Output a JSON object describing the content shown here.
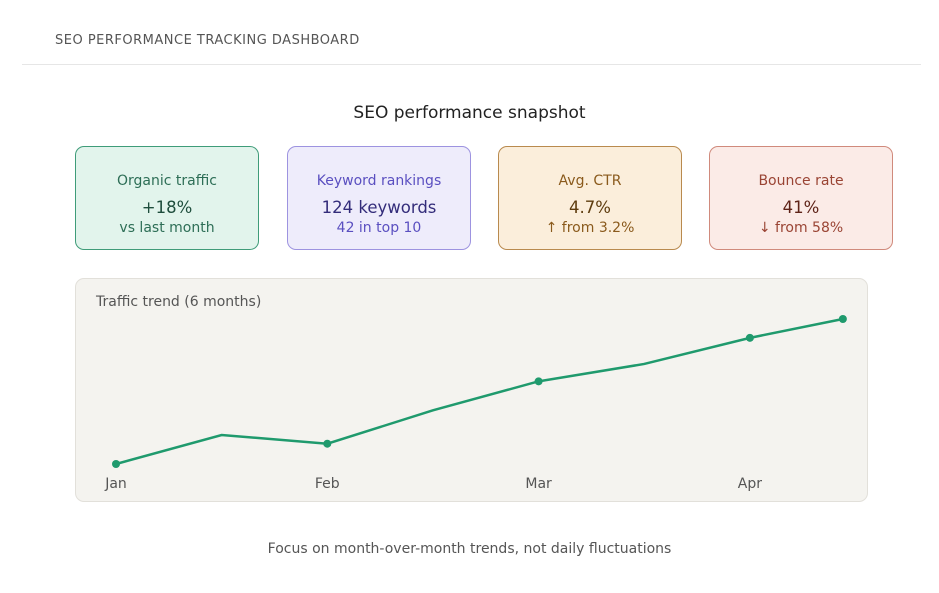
{
  "header": {
    "title": "SEO PERFORMANCE TRACKING DASHBOARD"
  },
  "snapshot_title": "SEO performance snapshot",
  "cards": [
    {
      "label": "Organic traffic",
      "value": "+18%",
      "sub": "vs last month",
      "bg": "#e2f4ec",
      "border": "#3f9c79",
      "label_color": "#2d6e56",
      "value_color": "#1e4d3c",
      "sub_color": "#2d6e56"
    },
    {
      "label": "Keyword rankings",
      "value": "124 keywords",
      "sub": "42 in top 10",
      "bg": "#eeecfb",
      "border": "#9d93e0",
      "label_color": "#5a4fc0",
      "value_color": "#332c7a",
      "sub_color": "#5a4fc0"
    },
    {
      "label": "Avg. CTR",
      "value": "4.7%",
      "sub": "↑ from 3.2%",
      "bg": "#fbeedb",
      "border": "#b98a4e",
      "label_color": "#8a5a1c",
      "value_color": "#5e3c0e",
      "sub_color": "#8a5a1c"
    },
    {
      "label": "Bounce rate",
      "value": "41%",
      "sub": "↓ from 58%",
      "bg": "#fbebe7",
      "border": "#d08a7c",
      "label_color": "#9a4434",
      "value_color": "#5e2318",
      "sub_color": "#9a4434"
    }
  ],
  "chart_data": {
    "type": "line",
    "title": "Traffic trend (6 months)",
    "x_tick_labels": [
      "Jan",
      "Feb",
      "Mar",
      "Apr"
    ],
    "x": [
      0,
      0.5,
      1,
      1.5,
      2,
      2.5,
      3,
      3.44
    ],
    "values": [
      0,
      20,
      14,
      37,
      57,
      69,
      87,
      100
    ],
    "markers_at": [
      0,
      2,
      4,
      6,
      7
    ],
    "y_axis_shown": false,
    "grid": false,
    "line_color": "#1f9a6d"
  },
  "footer": "Focus on month-over-month trends, not daily fluctuations"
}
